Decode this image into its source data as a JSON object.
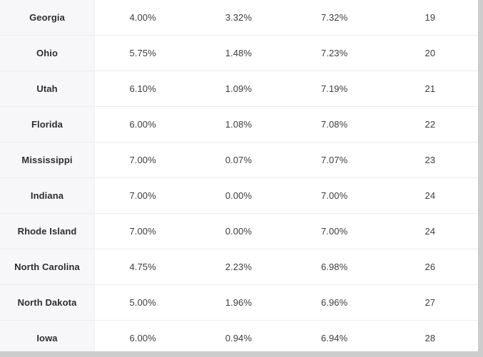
{
  "chart_data": {
    "type": "table",
    "header_visible": false,
    "rows": [
      [
        "Georgia",
        "4.00%",
        "3.32%",
        "7.32%",
        "19"
      ],
      [
        "Ohio",
        "5.75%",
        "1.48%",
        "7.23%",
        "20"
      ],
      [
        "Utah",
        "6.10%",
        "1.09%",
        "7.19%",
        "21"
      ],
      [
        "Florida",
        "6.00%",
        "1.08%",
        "7.08%",
        "22"
      ],
      [
        "Mississippi",
        "7.00%",
        "0.07%",
        "7.07%",
        "23"
      ],
      [
        "Indiana",
        "7.00%",
        "0.00%",
        "7.00%",
        "24"
      ],
      [
        "Rhode Island",
        "7.00%",
        "0.00%",
        "7.00%",
        "24"
      ],
      [
        "North Carolina",
        "4.75%",
        "2.23%",
        "6.98%",
        "26"
      ],
      [
        "North Dakota",
        "5.00%",
        "1.96%",
        "6.96%",
        "27"
      ],
      [
        "Iowa",
        "6.00%",
        "0.94%",
        "6.94%",
        "28"
      ]
    ]
  },
  "colors": {
    "state_column_bg": "#f7f7f9",
    "row_divider": "#ededed",
    "text": "#3d3d3d",
    "scrollbar": "#cdcdcd",
    "background": "#ffffff"
  }
}
